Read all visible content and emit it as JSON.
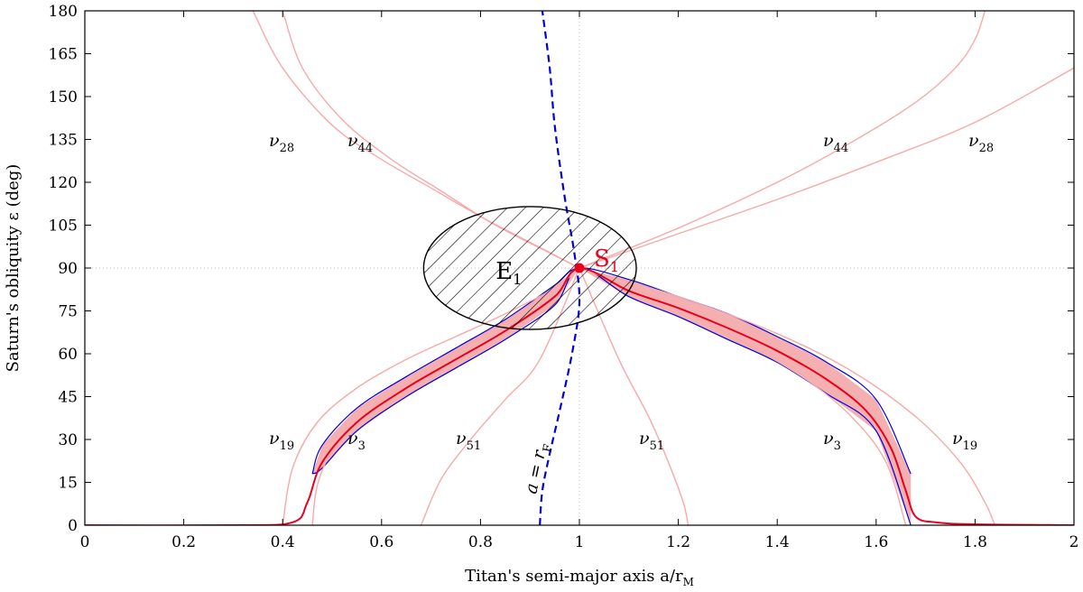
{
  "chart_data": {
    "type": "line",
    "xlabel": "Titan's semi-major axis a/r",
    "xlabel_sub": "M",
    "ylabel": "Saturn's obliquity ε (deg)",
    "xlim": [
      0,
      2
    ],
    "ylim": [
      0,
      180
    ],
    "xticks": [
      "0",
      "0.2",
      "0.4",
      "0.6",
      "0.8",
      "1",
      "1.2",
      "1.4",
      "1.6",
      "1.8",
      "2"
    ],
    "yticks": [
      "0",
      "15",
      "30",
      "45",
      "60",
      "75",
      "90",
      "105",
      "120",
      "135",
      "150",
      "165",
      "180"
    ],
    "grid": false,
    "reference_lines": {
      "x": 1,
      "y": 90
    },
    "colors": {
      "red": "#e8001c",
      "band": "#f4b0b0",
      "blue": "#0000dd",
      "pink": "#f7a9a9"
    },
    "series": [
      {
        "label_main": "ν",
        "label_sub": "19",
        "points": [
          [
            0.4,
            0
          ],
          [
            0.42,
            20
          ],
          [
            0.47,
            36
          ],
          [
            0.55,
            48
          ],
          [
            0.65,
            58
          ],
          [
            0.75,
            66
          ],
          [
            0.85,
            74
          ],
          [
            0.95,
            83
          ],
          [
            1.0,
            90
          ]
        ]
      },
      {
        "label_main": "ν",
        "label_sub": "3",
        "points": [
          [
            0.46,
            0
          ],
          [
            0.47,
            14
          ],
          [
            0.5,
            26
          ],
          [
            0.55,
            36
          ],
          [
            0.62,
            46
          ],
          [
            0.7,
            55
          ],
          [
            0.8,
            66
          ],
          [
            0.9,
            77
          ],
          [
            1.0,
            90
          ]
        ]
      },
      {
        "label_main": "ν",
        "label_sub": "51",
        "points": [
          [
            0.68,
            0
          ],
          [
            0.72,
            16
          ],
          [
            0.78,
            30
          ],
          [
            0.85,
            44
          ],
          [
            0.92,
            58
          ],
          [
            1.0,
            90
          ]
        ]
      },
      {
        "label_main": "ν",
        "label_sub": "28",
        "points": [
          [
            0.34,
            180
          ],
          [
            0.4,
            160
          ],
          [
            0.5,
            140
          ],
          [
            0.6,
            128
          ],
          [
            0.7,
            118
          ],
          [
            0.8,
            108
          ],
          [
            0.9,
            99
          ],
          [
            1.0,
            90
          ]
        ]
      },
      {
        "label_main": "ν",
        "label_sub": "44",
        "points": [
          [
            0.4,
            180
          ],
          [
            0.44,
            160
          ],
          [
            0.52,
            142
          ],
          [
            0.62,
            128
          ],
          [
            0.72,
            117
          ],
          [
            0.82,
            106
          ],
          [
            0.92,
            97
          ],
          [
            1.0,
            90
          ]
        ]
      },
      {
        "label_main": "ν",
        "label_sub": "51",
        "points": [
          [
            1.0,
            90
          ],
          [
            1.08,
            58
          ],
          [
            1.14,
            38
          ],
          [
            1.18,
            22
          ],
          [
            1.21,
            8
          ],
          [
            1.22,
            0
          ]
        ]
      },
      {
        "label_main": "ν",
        "label_sub": "3",
        "points": [
          [
            1.0,
            90
          ],
          [
            1.15,
            80
          ],
          [
            1.3,
            67
          ],
          [
            1.45,
            52
          ],
          [
            1.55,
            38
          ],
          [
            1.62,
            22
          ],
          [
            1.66,
            0
          ]
        ]
      },
      {
        "label_main": "ν",
        "label_sub": "19",
        "points": [
          [
            1.0,
            90
          ],
          [
            1.2,
            80
          ],
          [
            1.4,
            67
          ],
          [
            1.55,
            54
          ],
          [
            1.68,
            38
          ],
          [
            1.77,
            22
          ],
          [
            1.82,
            8
          ],
          [
            1.84,
            0
          ]
        ]
      },
      {
        "label_main": "ν",
        "label_sub": "44",
        "points": [
          [
            1.0,
            90
          ],
          [
            1.2,
            104
          ],
          [
            1.4,
            120
          ],
          [
            1.55,
            134
          ],
          [
            1.68,
            148
          ],
          [
            1.76,
            160
          ],
          [
            1.8,
            170
          ],
          [
            1.82,
            180
          ]
        ]
      },
      {
        "label_main": "ν",
        "label_sub": "28",
        "points": [
          [
            1.0,
            90
          ],
          [
            1.2,
            102
          ],
          [
            1.4,
            114
          ],
          [
            1.6,
            127
          ],
          [
            1.8,
            141
          ],
          [
            2.0,
            160
          ]
        ]
      }
    ],
    "resonance_curve": {
      "points": [
        [
          0,
          0
        ],
        [
          0.3,
          0
        ],
        [
          0.42,
          1
        ],
        [
          0.45,
          8
        ],
        [
          0.48,
          22
        ],
        [
          0.55,
          36
        ],
        [
          0.65,
          48
        ],
        [
          0.75,
          58
        ],
        [
          0.85,
          68
        ],
        [
          0.95,
          80
        ],
        [
          1.0,
          90
        ],
        [
          1.1,
          82
        ],
        [
          1.2,
          76
        ],
        [
          1.3,
          69
        ],
        [
          1.4,
          61
        ],
        [
          1.5,
          51
        ],
        [
          1.58,
          40
        ],
        [
          1.63,
          27
        ],
        [
          1.66,
          12
        ],
        [
          1.68,
          3
        ],
        [
          1.72,
          1
        ],
        [
          1.8,
          0.3
        ],
        [
          2.0,
          0
        ]
      ]
    },
    "resonance_band": {
      "upper": [
        [
          0.46,
          18
        ],
        [
          0.48,
          28
        ],
        [
          0.55,
          41
        ],
        [
          0.65,
          52
        ],
        [
          0.75,
          62
        ],
        [
          0.85,
          72
        ],
        [
          0.95,
          84
        ],
        [
          1.0,
          90
        ],
        [
          1.1,
          86
        ],
        [
          1.2,
          80
        ],
        [
          1.3,
          74
        ],
        [
          1.4,
          66
        ],
        [
          1.5,
          57
        ],
        [
          1.6,
          44
        ],
        [
          1.67,
          18
        ]
      ],
      "lower": [
        [
          0.46,
          18
        ],
        [
          0.48,
          20
        ],
        [
          0.55,
          33
        ],
        [
          0.65,
          45
        ],
        [
          0.75,
          55
        ],
        [
          0.85,
          65
        ],
        [
          0.95,
          77
        ],
        [
          1.0,
          90
        ],
        [
          1.1,
          80
        ],
        [
          1.2,
          73
        ],
        [
          1.3,
          65
        ],
        [
          1.4,
          57
        ],
        [
          1.5,
          46
        ],
        [
          1.6,
          33
        ],
        [
          1.67,
          0
        ]
      ]
    },
    "separatrix_curve": {
      "label_lhs": "a = r",
      "label_sub": "F",
      "points": [
        [
          0.92,
          0
        ],
        [
          0.925,
          12
        ],
        [
          0.94,
          25
        ],
        [
          0.96,
          40
        ],
        [
          0.985,
          60
        ],
        [
          1.0,
          78
        ],
        [
          0.99,
          95
        ],
        [
          0.97,
          115
        ],
        [
          0.95,
          140
        ],
        [
          0.94,
          160
        ],
        [
          0.925,
          180
        ]
      ]
    },
    "points": [
      {
        "label_main": "S",
        "label_sub": "1",
        "x": 1.0,
        "y": 90
      }
    ],
    "region": {
      "label_main": "E",
      "label_sub": "1",
      "center": [
        0.9,
        90
      ],
      "width": 0.43,
      "height": 43
    }
  }
}
